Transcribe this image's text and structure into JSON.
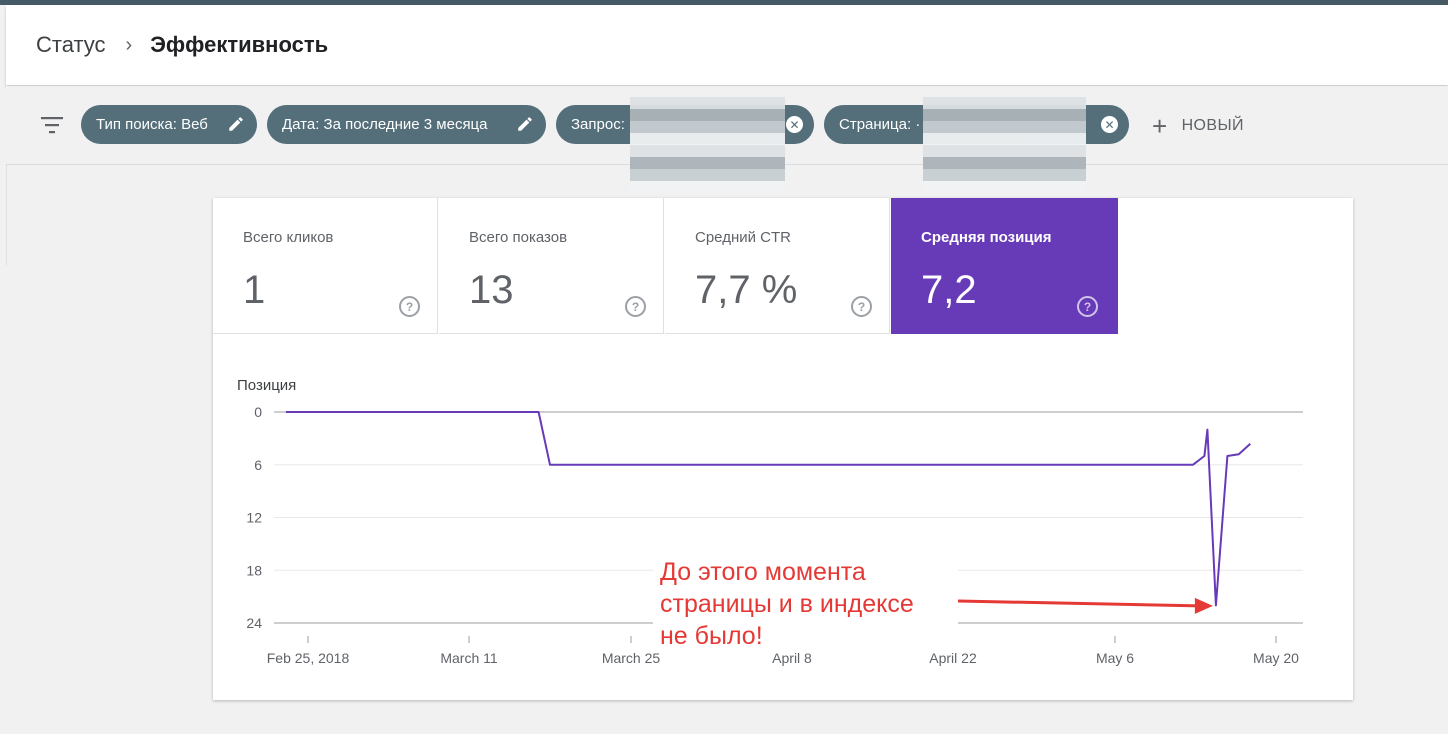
{
  "breadcrumb": {
    "parent": "Статус",
    "separator": "›",
    "current": "Эффективность"
  },
  "filters": {
    "chips": [
      {
        "label": "Тип поиска: Веб",
        "action": "edit"
      },
      {
        "label": "Дата: За последние 3 месяца",
        "action": "edit"
      },
      {
        "label": "Запрос:",
        "action": "remove",
        "value_redacted": true
      },
      {
        "label": "Страница: ·",
        "action": "remove",
        "value_redacted": true
      }
    ],
    "new_label": "НОВЫЙ"
  },
  "metrics": [
    {
      "label": "Всего кликов",
      "value": "1",
      "help": "?"
    },
    {
      "label": "Всего показов",
      "value": "13",
      "help": "?"
    },
    {
      "label": "Средний CTR",
      "value": "7,7 %",
      "help": "?"
    },
    {
      "label": "Средняя позиция",
      "value": "7,2",
      "help": "?",
      "selected": true
    }
  ],
  "colors": {
    "accent": "#673ab7",
    "chip": "#546e7a",
    "annotation": "#e53935"
  },
  "chart_data": {
    "type": "line",
    "ylabel": "Позиция",
    "y_inverted": true,
    "ylim": [
      0,
      24
    ],
    "yticks": [
      "0",
      "6",
      "12",
      "18",
      "24"
    ],
    "xtick_labels": [
      "Feb 25, 2018",
      "March 11",
      "March 25",
      "April 8",
      "April 22",
      "May 6",
      "May 20"
    ],
    "x_start": "2018-02-24",
    "series": [
      {
        "color": "#673ab7",
        "points": [
          [
            "2018-02-24",
            0
          ],
          [
            "2018-03-18",
            0
          ],
          [
            "2018-03-19",
            6
          ],
          [
            "2018-05-14",
            6
          ],
          [
            "2018-05-15",
            5
          ],
          [
            "2018-05-15",
            2
          ],
          [
            "2018-05-16",
            22
          ],
          [
            "2018-05-17",
            5
          ],
          [
            "2018-05-18",
            4.8
          ],
          [
            "2018-05-19",
            3.6
          ]
        ]
      }
    ],
    "annotation": {
      "text": [
        "До этого момента",
        "страницы и в индексе",
        "не было!"
      ],
      "points_to": [
        "2018-05-16",
        22
      ]
    },
    "grid": true,
    "legend": "none"
  }
}
